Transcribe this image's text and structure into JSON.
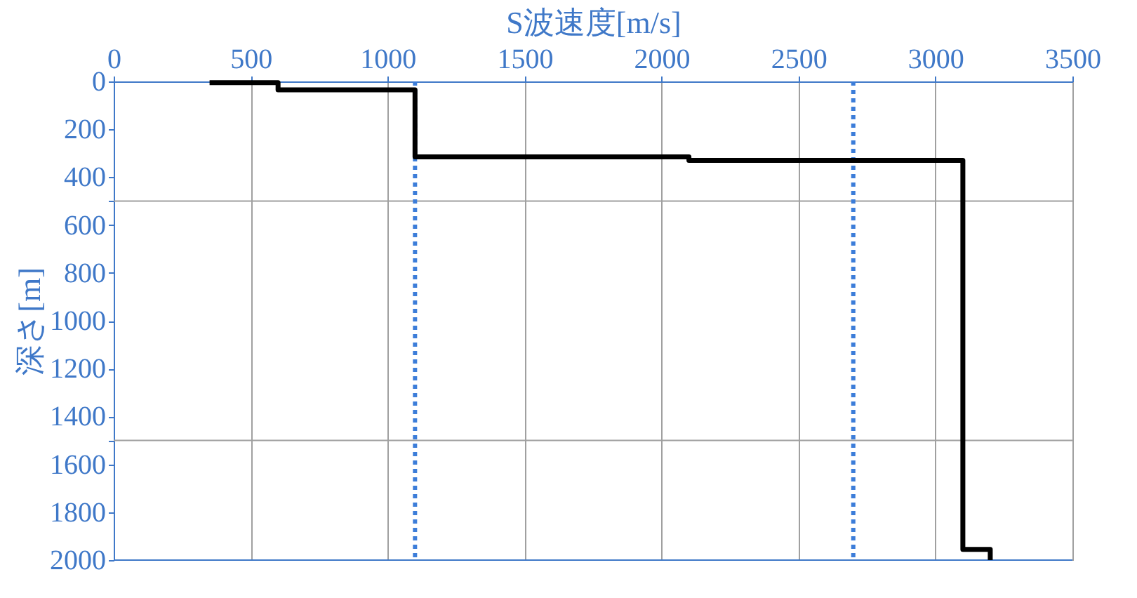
{
  "chart_data": {
    "type": "line",
    "xlabel": "S波速度[m/s]",
    "ylabel": "深さ[m]",
    "series": [
      {
        "color": "#000000",
        "x": [
          350,
          600,
          600,
          1100,
          1100,
          2100,
          2100,
          3100,
          3100,
          3200,
          3200
        ],
        "values": [
          5,
          5,
          35,
          35,
          315,
          315,
          330,
          330,
          1955,
          1955,
          2000
        ]
      }
    ],
    "xlim": [
      0,
      3500
    ],
    "xticks": [
      0,
      500,
      1000,
      1500,
      2000,
      2500,
      3000,
      3500
    ],
    "ylim": [
      2000,
      0
    ],
    "yticks": [
      0,
      200,
      400,
      {
        "value": 500,
        "label": null
      },
      600,
      800,
      1000,
      1200,
      1400,
      {
        "value": 1500,
        "label": null
      },
      1600,
      1800,
      2000
    ],
    "ref_lines": [
      {
        "axis": "x",
        "value": 1100,
        "color": "#3c7dd9",
        "line_style": "dotted"
      },
      {
        "axis": "x",
        "value": 2700,
        "color": "#3c7dd9",
        "line_style": "dotted"
      }
    ],
    "grid": true,
    "marker": "none",
    "line_style": "solid"
  }
}
